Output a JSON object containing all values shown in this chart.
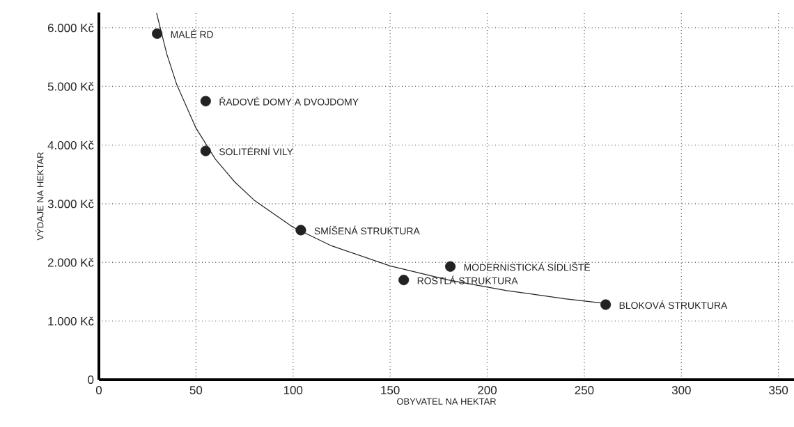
{
  "chart_data": {
    "type": "scatter",
    "xlabel": "OBYVATEL NA HEKTAR",
    "ylabel": "VÝDAJE NA HEKTAR",
    "xlim": [
      0,
      358
    ],
    "ylim": [
      0,
      6260
    ],
    "xticks": [
      0,
      50,
      100,
      150,
      200,
      250,
      300,
      350
    ],
    "yticks": [
      0,
      {
        "value": 1000,
        "label": "1.000 Kč"
      },
      {
        "value": 2000,
        "label": "2.000 Kč"
      },
      {
        "value": 3000,
        "label": "3.000 Kč"
      },
      {
        "value": 4000,
        "label": "4.000 Kč"
      },
      {
        "value": 5000,
        "label": "5.000 Kč"
      },
      {
        "value": 6000,
        "label": "6.000 Kč"
      }
    ],
    "grid": true,
    "series": [
      {
        "color": "#222222",
        "marker": "circle",
        "x": [
          30,
          55,
          55,
          104,
          181,
          157,
          261
        ],
        "values": [
          5900,
          4750,
          3900,
          2550,
          1930,
          1700,
          1280
        ]
      },
      {
        "type": "line",
        "color": "#222222",
        "marker": "none",
        "line_style": "solid",
        "x": [
          29.7,
          35,
          40,
          50,
          60,
          70,
          80,
          100,
          120,
          150,
          180,
          210,
          240,
          261
        ],
        "values": [
          6250,
          5550,
          5040,
          4290,
          3760,
          3370,
          3060,
          2600,
          2280,
          1940,
          1700,
          1520,
          1380,
          1300
        ]
      }
    ],
    "annotations": [
      {
        "text": "MALÉ RD",
        "x": 30,
        "y": 5900
      },
      {
        "text": "ŘADOVÉ DOMY A DVOJDOMY",
        "x": 55,
        "y": 4750
      },
      {
        "text": "SOLITÉRNÍ VILY",
        "x": 55,
        "y": 3900
      },
      {
        "text": "SMÍŠENÁ STRUKTURA",
        "x": 104,
        "y": 2550
      },
      {
        "text": "MODERNISTICKÁ SÍDLIŠTĚ",
        "x": 181,
        "y": 1930
      },
      {
        "text": "ROSTLÁ STRUKTURA",
        "x": 157,
        "y": 1700
      },
      {
        "text": "BLOKOVÁ STRUKTURA",
        "x": 261,
        "y": 1280
      }
    ]
  }
}
